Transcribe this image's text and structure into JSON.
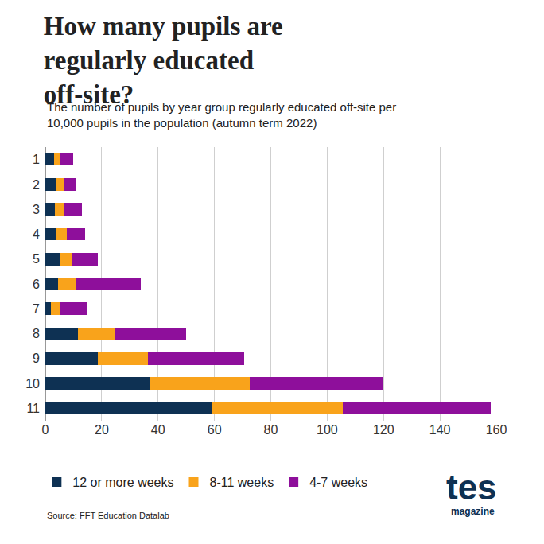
{
  "chart_data": {
    "type": "bar",
    "title": "How many pupils are regularly educated off-site?",
    "subtitle": "The number of pupils by year group regularly educated off-site per 10,000 pupils in the population (autumn term 2022)",
    "source": "Source: FFT Education Datalab",
    "logo_text": "tes",
    "logo_subtext": "magazine",
    "orientation": "horizontal",
    "stacked": true,
    "grid": true,
    "legend": "bottom",
    "categories": [
      "1",
      "2",
      "3",
      "4",
      "5",
      "6",
      "7",
      "8",
      "9",
      "10",
      "11"
    ],
    "series": [
      {
        "name": "12 or more weeks",
        "color": "#0e3153",
        "values": [
          3,
          4,
          3.5,
          4,
          5,
          4.5,
          2,
          11.5,
          18.5,
          37,
          59
        ]
      },
      {
        "name": "8-11 weeks",
        "color": "#f9a31b",
        "values": [
          2.5,
          2.5,
          3,
          3.5,
          4.5,
          6.5,
          3,
          13,
          18,
          35.5,
          46.5
        ]
      },
      {
        "name": "4-7 weeks",
        "color": "#8e0f9b",
        "values": [
          4.5,
          4.5,
          6.5,
          6.5,
          9,
          23,
          10,
          25.5,
          34,
          47.5,
          52.5
        ]
      }
    ],
    "xlim": [
      0,
      160
    ],
    "xticks": [
      0,
      20,
      40,
      60,
      80,
      100,
      120,
      140,
      160
    ]
  }
}
